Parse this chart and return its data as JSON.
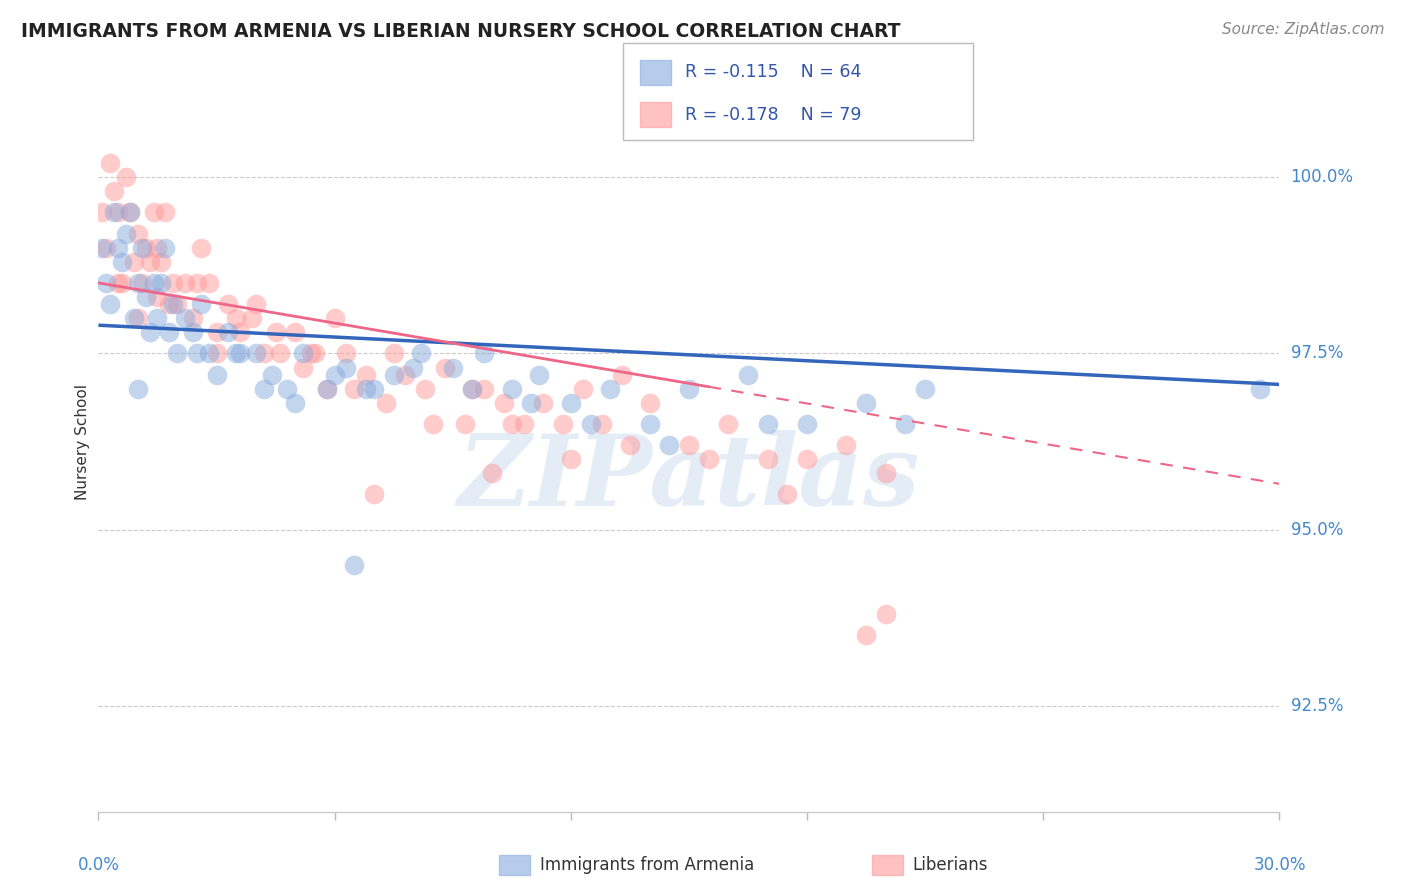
{
  "title": "IMMIGRANTS FROM ARMENIA VS LIBERIAN NURSERY SCHOOL CORRELATION CHART",
  "source": "Source: ZipAtlas.com",
  "ylabel": "Nursery School",
  "ytick_labels": [
    "92.5%",
    "95.0%",
    "97.5%",
    "100.0%"
  ],
  "ytick_values": [
    92.5,
    95.0,
    97.5,
    100.0
  ],
  "xlim": [
    0.0,
    30.0
  ],
  "ylim": [
    91.0,
    101.5
  ],
  "legend1_r": "-0.115",
  "legend1_n": "64",
  "legend2_r": "-0.178",
  "legend2_n": "79",
  "legend_label1": "Immigrants from Armenia",
  "legend_label2": "Liberians",
  "blue_color": "#88AADD",
  "pink_color": "#FF9999",
  "blue_line_color": "#3366BB",
  "pink_line_color": "#EE6688",
  "blue_x": [
    0.1,
    0.2,
    0.3,
    0.4,
    0.5,
    0.6,
    0.7,
    0.8,
    0.9,
    1.0,
    1.1,
    1.2,
    1.3,
    1.4,
    1.5,
    1.6,
    1.7,
    1.8,
    1.9,
    2.0,
    2.2,
    2.4,
    2.6,
    2.8,
    3.0,
    3.3,
    3.6,
    4.0,
    4.4,
    4.8,
    5.2,
    5.8,
    6.3,
    6.8,
    7.5,
    8.2,
    9.0,
    9.8,
    10.5,
    11.2,
    12.0,
    13.0,
    14.0,
    15.0,
    16.5,
    17.0,
    18.0,
    19.5,
    20.5,
    21.0,
    3.5,
    4.2,
    5.0,
    6.0,
    7.0,
    8.0,
    9.5,
    11.0,
    12.5,
    14.5,
    29.5,
    2.5,
    1.0,
    6.5
  ],
  "blue_y": [
    99.0,
    98.5,
    98.2,
    99.5,
    99.0,
    98.8,
    99.2,
    99.5,
    98.0,
    98.5,
    99.0,
    98.3,
    97.8,
    98.5,
    98.0,
    98.5,
    99.0,
    97.8,
    98.2,
    97.5,
    98.0,
    97.8,
    98.2,
    97.5,
    97.2,
    97.8,
    97.5,
    97.5,
    97.2,
    97.0,
    97.5,
    97.0,
    97.3,
    97.0,
    97.2,
    97.5,
    97.3,
    97.5,
    97.0,
    97.2,
    96.8,
    97.0,
    96.5,
    97.0,
    97.2,
    96.5,
    96.5,
    96.8,
    96.5,
    97.0,
    97.5,
    97.0,
    96.8,
    97.2,
    97.0,
    97.3,
    97.0,
    96.8,
    96.5,
    96.2,
    97.0,
    97.5,
    97.0,
    94.5
  ],
  "pink_x": [
    0.1,
    0.2,
    0.3,
    0.4,
    0.5,
    0.6,
    0.7,
    0.8,
    0.9,
    1.0,
    1.1,
    1.2,
    1.3,
    1.4,
    1.5,
    1.6,
    1.7,
    1.8,
    1.9,
    2.0,
    2.2,
    2.4,
    2.6,
    2.8,
    3.0,
    3.3,
    3.6,
    3.9,
    4.2,
    4.6,
    5.0,
    5.4,
    5.8,
    6.3,
    6.8,
    7.3,
    7.8,
    8.3,
    8.8,
    9.3,
    9.8,
    10.3,
    10.8,
    11.3,
    11.8,
    12.3,
    12.8,
    13.3,
    14.0,
    15.0,
    16.0,
    17.0,
    18.0,
    19.0,
    20.0,
    3.5,
    4.0,
    5.5,
    6.5,
    7.5,
    1.5,
    2.5,
    4.5,
    6.0,
    8.5,
    9.5,
    10.5,
    12.0,
    13.5,
    15.5,
    17.5,
    19.5,
    0.5,
    1.0,
    3.0,
    7.0,
    5.2,
    10.0,
    20.0
  ],
  "pink_y": [
    99.5,
    99.0,
    100.2,
    99.8,
    99.5,
    98.5,
    100.0,
    99.5,
    98.8,
    99.2,
    98.5,
    99.0,
    98.8,
    99.5,
    98.3,
    98.8,
    99.5,
    98.2,
    98.5,
    98.2,
    98.5,
    98.0,
    99.0,
    98.5,
    97.8,
    98.2,
    97.8,
    98.0,
    97.5,
    97.5,
    97.8,
    97.5,
    97.0,
    97.5,
    97.2,
    96.8,
    97.2,
    97.0,
    97.3,
    96.5,
    97.0,
    96.8,
    96.5,
    96.8,
    96.5,
    97.0,
    96.5,
    97.2,
    96.8,
    96.2,
    96.5,
    96.0,
    96.0,
    96.2,
    95.8,
    98.0,
    98.2,
    97.5,
    97.0,
    97.5,
    99.0,
    98.5,
    97.8,
    98.0,
    96.5,
    97.0,
    96.5,
    96.0,
    96.2,
    96.0,
    95.5,
    93.5,
    98.5,
    98.0,
    97.5,
    95.5,
    97.3,
    95.8,
    93.8
  ],
  "pink_dash_start_x": 15.5,
  "blue_intercept": 97.9,
  "blue_slope": -0.028,
  "pink_intercept": 98.5,
  "pink_slope": -0.095
}
